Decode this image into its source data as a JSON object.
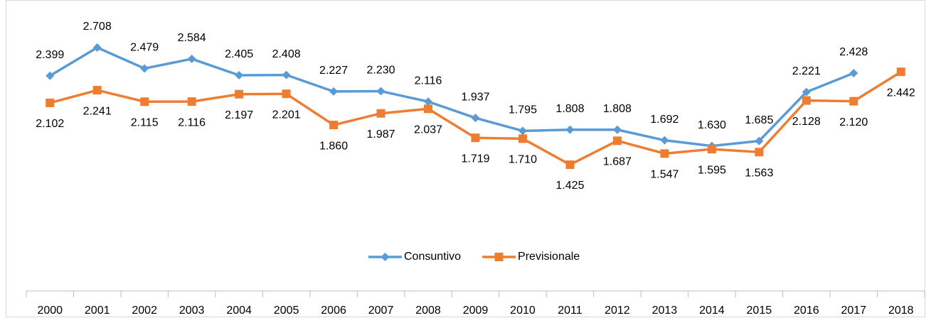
{
  "chart_data": {
    "type": "line",
    "categories": [
      "2000",
      "2001",
      "2002",
      "2003",
      "2004",
      "2005",
      "2006",
      "2007",
      "2008",
      "2009",
      "2010",
      "2011",
      "2012",
      "2013",
      "2014",
      "2015",
      "2016",
      "2017",
      "2018"
    ],
    "series": [
      {
        "name": "Consuntivo",
        "color": "#5b9bd5",
        "marker": "diamond",
        "values": [
          2399,
          2708,
          2479,
          2584,
          2405,
          2408,
          2227,
          2230,
          2116,
          1937,
          1795,
          1808,
          1808,
          1692,
          1630,
          1685,
          2221,
          2428,
          null
        ],
        "value_labels": [
          "2.399",
          "2.708",
          "2.479",
          "2.584",
          "2.405",
          "2.408",
          "2.227",
          "2.230",
          "2.116",
          "1.937",
          "1.795",
          "1.808",
          "1.808",
          "1.692",
          "1.630",
          "1.685",
          "2.221",
          "2.428",
          null
        ]
      },
      {
        "name": "Previsionale",
        "color": "#ed7d31",
        "marker": "square",
        "values": [
          2102,
          2241,
          2115,
          2116,
          2197,
          2201,
          1860,
          1987,
          2037,
          1719,
          1710,
          1425,
          1687,
          1547,
          1595,
          1563,
          2128,
          2120,
          2442
        ],
        "value_labels": [
          "2.102",
          "2.241",
          "2.115",
          "2.116",
          "2.197",
          "2.201",
          "1.860",
          "1.987",
          "2.037",
          "1.719",
          "1.710",
          "1.425",
          "1.687",
          "1.547",
          "1.595",
          "1.563",
          "2.128",
          "2.120",
          "2.442"
        ]
      }
    ],
    "legend": "bottom"
  }
}
